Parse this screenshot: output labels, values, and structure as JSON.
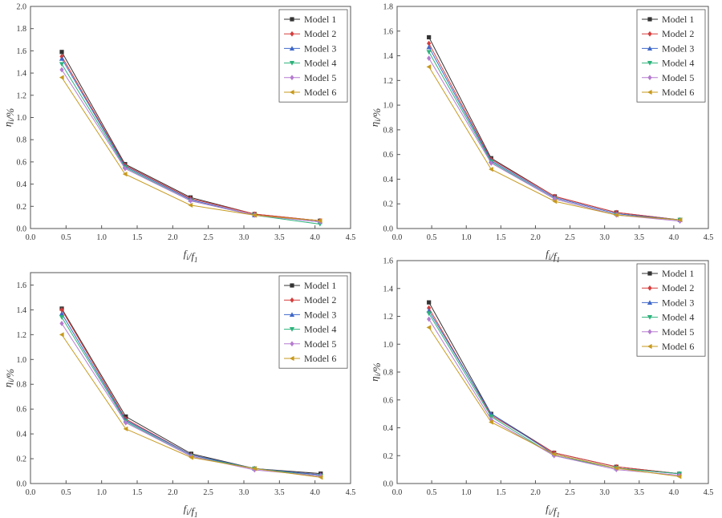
{
  "colors": {
    "axis": "#555555",
    "text": "#333333",
    "background": "#ffffff"
  },
  "chart_data": [
    {
      "type": "line",
      "xlabel": "f_i/f_1",
      "ylabel": "η_i/%",
      "xlim": [
        0.0,
        4.5
      ],
      "ylim": [
        0.0,
        2.0
      ],
      "x_ticks": [
        "0.0",
        "0.5",
        "1.0",
        "1.5",
        "2.0",
        "2.5",
        "3.0",
        "3.5",
        "4.0",
        "4.5"
      ],
      "y_ticks": [
        "0.0",
        "0.2",
        "0.4",
        "0.6",
        "0.8",
        "1.0",
        "1.2",
        "1.4",
        "1.6",
        "1.8",
        "2.0"
      ],
      "grid": false,
      "legend_position": "top-right",
      "x": [
        0.44,
        1.33,
        2.25,
        3.15,
        4.07
      ],
      "series": [
        {
          "name": "Model 1",
          "color": "#333333",
          "marker": "square",
          "values": [
            1.59,
            0.58,
            0.28,
            0.13,
            0.07
          ]
        },
        {
          "name": "Model 2",
          "color": "#d63b3b",
          "marker": "diamond",
          "values": [
            1.55,
            0.57,
            0.27,
            0.13,
            0.07
          ]
        },
        {
          "name": "Model 3",
          "color": "#3f68c9",
          "marker": "triangle-up",
          "values": [
            1.53,
            0.56,
            0.26,
            0.12,
            0.06
          ]
        },
        {
          "name": "Model 4",
          "color": "#2db37c",
          "marker": "triangle-down",
          "values": [
            1.48,
            0.55,
            0.25,
            0.12,
            0.04
          ]
        },
        {
          "name": "Model 5",
          "color": "#b57ad0",
          "marker": "diamond",
          "values": [
            1.43,
            0.54,
            0.25,
            0.12,
            0.06
          ]
        },
        {
          "name": "Model 6",
          "color": "#c79a1e",
          "marker": "triangle-left",
          "values": [
            1.36,
            0.49,
            0.21,
            0.12,
            0.07
          ]
        }
      ]
    },
    {
      "type": "line",
      "xlabel": "f_i/f_1",
      "ylabel": "η_i/%",
      "xlim": [
        0.0,
        4.5
      ],
      "ylim": [
        0.0,
        1.8
      ],
      "x_ticks": [
        "0.0",
        "0.5",
        "1.0",
        "1.5",
        "2.0",
        "2.5",
        "3.0",
        "3.5",
        "4.0",
        "4.5"
      ],
      "y_ticks": [
        "0.0",
        "0.2",
        "0.4",
        "0.6",
        "0.8",
        "1.0",
        "1.2",
        "1.4",
        "1.6",
        "1.8"
      ],
      "grid": false,
      "legend_position": "top-right",
      "x": [
        0.46,
        1.36,
        2.28,
        3.17,
        4.09
      ],
      "series": [
        {
          "name": "Model 1",
          "color": "#333333",
          "marker": "square",
          "values": [
            1.55,
            0.57,
            0.26,
            0.13,
            0.07
          ]
        },
        {
          "name": "Model 2",
          "color": "#d63b3b",
          "marker": "diamond",
          "values": [
            1.5,
            0.56,
            0.26,
            0.13,
            0.07
          ]
        },
        {
          "name": "Model 3",
          "color": "#3f68c9",
          "marker": "triangle-up",
          "values": [
            1.47,
            0.55,
            0.25,
            0.12,
            0.07
          ]
        },
        {
          "name": "Model 4",
          "color": "#2db37c",
          "marker": "triangle-down",
          "values": [
            1.43,
            0.54,
            0.24,
            0.11,
            0.07
          ]
        },
        {
          "name": "Model 5",
          "color": "#b57ad0",
          "marker": "diamond",
          "values": [
            1.38,
            0.53,
            0.24,
            0.11,
            0.06
          ]
        },
        {
          "name": "Model 6",
          "color": "#c79a1e",
          "marker": "triangle-left",
          "values": [
            1.31,
            0.48,
            0.22,
            0.11,
            0.07
          ]
        }
      ]
    },
    {
      "type": "line",
      "xlabel": "f_i/f_1",
      "ylabel": "η_i/%",
      "xlim": [
        0.0,
        4.5
      ],
      "ylim": [
        0.0,
        1.7
      ],
      "x_ticks": [
        "0.0",
        "0.5",
        "1.0",
        "1.5",
        "2.0",
        "2.5",
        "3.0",
        "3.5",
        "4.0",
        "4.5"
      ],
      "y_ticks": [
        "0.0",
        "0.2",
        "0.4",
        "0.6",
        "0.8",
        "1.0",
        "1.2",
        "1.4",
        "1.6"
      ],
      "grid": false,
      "legend_position": "top-right",
      "x": [
        0.44,
        1.34,
        2.26,
        3.15,
        4.08
      ],
      "series": [
        {
          "name": "Model 1",
          "color": "#333333",
          "marker": "square",
          "values": [
            1.41,
            0.54,
            0.24,
            0.12,
            0.08
          ]
        },
        {
          "name": "Model 2",
          "color": "#d63b3b",
          "marker": "diamond",
          "values": [
            1.4,
            0.52,
            0.23,
            0.12,
            0.07
          ]
        },
        {
          "name": "Model 3",
          "color": "#3f68c9",
          "marker": "triangle-up",
          "values": [
            1.37,
            0.51,
            0.23,
            0.12,
            0.07
          ]
        },
        {
          "name": "Model 4",
          "color": "#2db37c",
          "marker": "triangle-down",
          "values": [
            1.34,
            0.5,
            0.22,
            0.12,
            0.06
          ]
        },
        {
          "name": "Model 5",
          "color": "#b57ad0",
          "marker": "diamond",
          "values": [
            1.29,
            0.49,
            0.22,
            0.11,
            0.06
          ]
        },
        {
          "name": "Model 6",
          "color": "#c79a1e",
          "marker": "triangle-left",
          "values": [
            1.2,
            0.44,
            0.21,
            0.12,
            0.05
          ]
        }
      ]
    },
    {
      "type": "line",
      "xlabel": "f_i/f_1",
      "ylabel": "η_i/%",
      "xlim": [
        0.0,
        4.5
      ],
      "ylim": [
        0.0,
        1.6
      ],
      "x_ticks": [
        "0.0",
        "0.5",
        "1.0",
        "1.5",
        "2.0",
        "2.5",
        "3.0",
        "3.5",
        "4.0",
        "4.5"
      ],
      "y_ticks": [
        "0.0",
        "0.2",
        "0.4",
        "0.6",
        "0.8",
        "1.0",
        "1.2",
        "1.4",
        "1.6"
      ],
      "grid": false,
      "legend_position": "top-right",
      "x": [
        0.46,
        1.36,
        2.27,
        3.17,
        4.08
      ],
      "series": [
        {
          "name": "Model 1",
          "color": "#333333",
          "marker": "square",
          "values": [
            1.3,
            0.5,
            0.22,
            0.12,
            0.07
          ]
        },
        {
          "name": "Model 2",
          "color": "#d63b3b",
          "marker": "diamond",
          "values": [
            1.26,
            0.49,
            0.22,
            0.12,
            0.07
          ]
        },
        {
          "name": "Model 3",
          "color": "#3f68c9",
          "marker": "triangle-up",
          "values": [
            1.24,
            0.5,
            0.21,
            0.11,
            0.07
          ]
        },
        {
          "name": "Model 4",
          "color": "#2db37c",
          "marker": "triangle-down",
          "values": [
            1.22,
            0.48,
            0.2,
            0.11,
            0.07
          ]
        },
        {
          "name": "Model 5",
          "color": "#b57ad0",
          "marker": "diamond",
          "values": [
            1.18,
            0.46,
            0.2,
            0.1,
            0.06
          ]
        },
        {
          "name": "Model 6",
          "color": "#c79a1e",
          "marker": "triangle-left",
          "values": [
            1.12,
            0.44,
            0.21,
            0.11,
            0.05
          ]
        }
      ]
    }
  ]
}
